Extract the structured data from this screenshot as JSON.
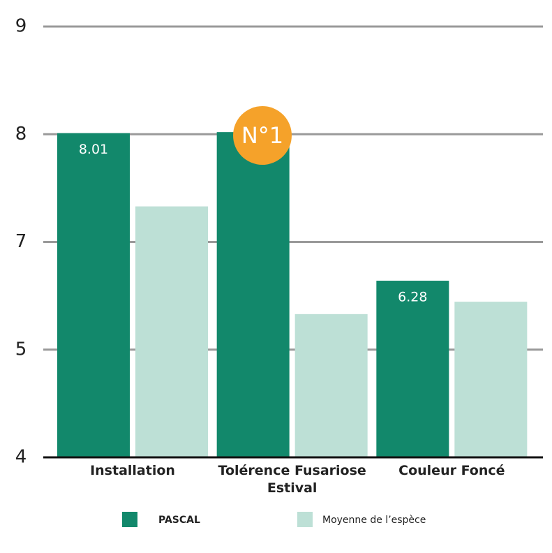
{
  "chart_data": {
    "type": "bar",
    "categories": [
      "Installation",
      "Tolérence Fusariose Estival",
      "Couleur Foncé"
    ],
    "series": [
      {
        "name": "PASCAL",
        "color": "#12886b",
        "values": [
          8.01,
          8.02,
          6.28
        ]
      },
      {
        "name": "Moyenne de l’espèce",
        "color": "#bde0d6",
        "values": [
          7.33,
          5.66,
          5.89
        ]
      }
    ],
    "ylim": [
      4,
      9
    ],
    "yticks": [
      4,
      5,
      7,
      8,
      9
    ],
    "grid": true,
    "annotation": "N°1",
    "annotation_color": "#f5a22a"
  }
}
